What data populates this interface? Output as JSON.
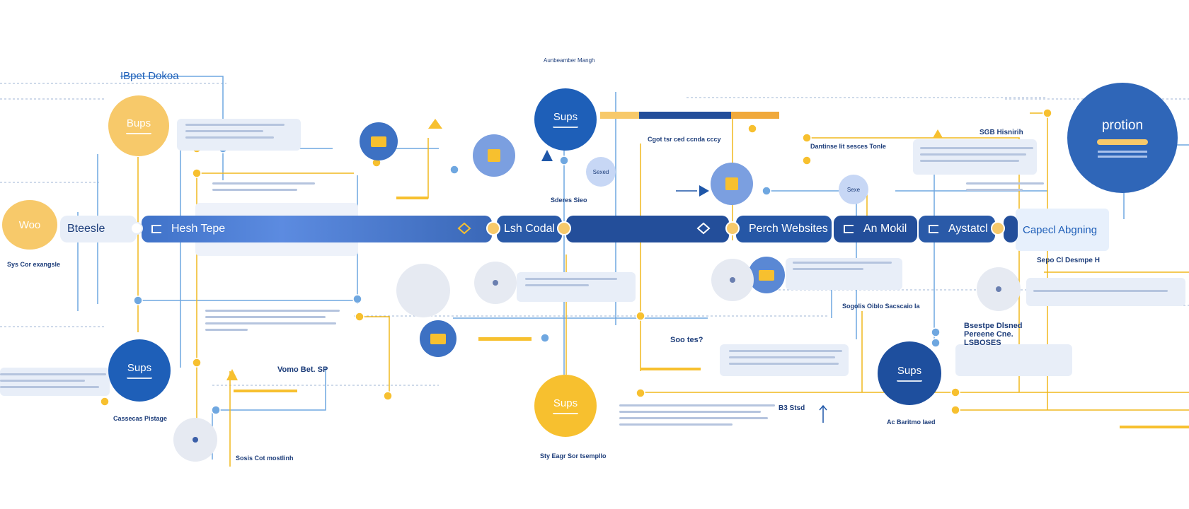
{
  "colors": {
    "blue_dark": "#1e56a8",
    "blue_mid": "#3b6fc4",
    "blue_light": "#c7d7f5",
    "yellow": "#f7c02f",
    "yellow_light": "#f7c96a",
    "gray_node": "#e6eaf2",
    "line_blue": "#6fa7e0",
    "line_yellow": "#f0b81e"
  },
  "labels": {
    "top_title": "IBpet Dokoa",
    "top_center_small": "Aunbeamber Mangh",
    "node_left_yellow": "Bups",
    "node_left_woo": "Woo",
    "node_left_blue": "Sups",
    "node_top_blue": "Sups",
    "node_bottom_yellow": "Sups",
    "node_right_blue": "Sups",
    "node_protion": "protion",
    "node_small_light": "Sexed",
    "node_small_light2": "Sexe",
    "band_bteesle": "Bteesle",
    "band_hesh": "Hesh Tepe",
    "band_lsh": "Lsh Codal",
    "band_perch": "Perch Websites",
    "band_an_mokil": "An Mokil",
    "band_aystatcl": "Aystatcl",
    "band_capecl": "Capecl Abgning",
    "left_small_caption": "Sys Cor exangsle",
    "bottom_left_caption": "Cassecas Pistage",
    "bottom_caption_1": "Sosis Cot mostlinh",
    "bottom_center_caption": "Sty Eagr Sor tsempllo",
    "right_top_label": "SGB Hisnirih",
    "right_mid_label": "Sepo Cl Desmpe H",
    "right_lower_label": "Bsestpe Dlsned Pereene Cne. LSBOSES",
    "center_caption": "Cgot tsr ced ccnda cccy",
    "mid_label_1": "Vomo Bet.  SP",
    "mid_label_2": "Soo tes?",
    "bottom_right_caption": "Ac Baritmo laed",
    "bottom_mid_label": "B3 Stsd",
    "card_right_top": "Dantinse lit sesces Tonle",
    "card_sdes": "Sderes Sieo",
    "card_center_2": "Sogolis Oiblo Sacscaio la"
  }
}
